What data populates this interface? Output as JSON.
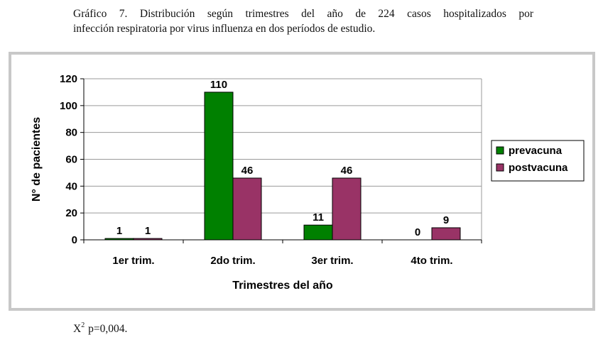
{
  "caption": {
    "line1": "Gráfico 7. Distribución según trimestres del año de 224 casos hospitalizados por",
    "line2": "infección respiratoria por virus influenza en dos períodos de estudio."
  },
  "footnote": {
    "chi_base": "X",
    "chi_exp": "2",
    "p_text": " p=0,004."
  },
  "colors": {
    "prevacuna": "#008000",
    "postvacuna": "#993366"
  },
  "chart_data": {
    "type": "bar",
    "title": "",
    "xlabel": "Trimestres del año",
    "ylabel": "N° de pacientes",
    "categories": [
      "1er trim.",
      "2do trim.",
      "3er trim.",
      "4to trim."
    ],
    "series": [
      {
        "name": "prevacuna",
        "values": [
          1,
          110,
          11,
          0
        ]
      },
      {
        "name": "postvacuna",
        "values": [
          1,
          46,
          46,
          9
        ]
      }
    ],
    "ylim": [
      0,
      120
    ],
    "yticks": [
      0,
      20,
      40,
      60,
      80,
      100,
      120
    ],
    "grid": true,
    "legend": "right"
  }
}
